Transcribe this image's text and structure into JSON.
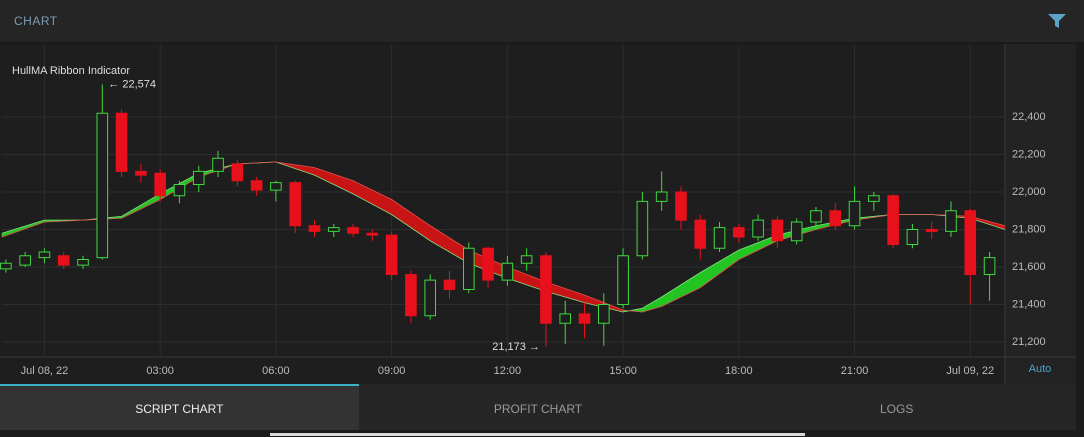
{
  "header": {
    "title": "CHART"
  },
  "chart_data": {
    "type": "candlestick",
    "title": "HullMA Ribbon Indicator",
    "x": [
      -1,
      -0.5,
      0,
      0.5,
      1,
      1.5,
      2,
      2.5,
      3,
      3.5,
      4,
      4.5,
      5,
      5.5,
      6,
      6.5,
      7,
      7.5,
      8,
      8.5,
      9,
      9.5,
      10,
      10.5,
      11,
      11.5,
      12,
      12.5,
      13,
      13.5,
      14,
      14.5,
      15,
      15.5,
      16,
      16.5,
      17,
      17.5,
      18,
      18.5,
      19,
      19.5,
      20,
      20.5,
      21,
      21.5,
      22,
      22.5,
      23,
      23.5,
      24,
      24.5
    ],
    "open": [
      21590,
      21610,
      21650,
      21660,
      21610,
      21650,
      22420,
      22110,
      22100,
      21980,
      22040,
      22110,
      22150,
      22060,
      22010,
      22050,
      21820,
      21790,
      21810,
      21780,
      21770,
      21560,
      21340,
      21530,
      21480,
      21700,
      21530,
      21620,
      21660,
      21300,
      21350,
      21300,
      21400,
      21660,
      21950,
      22000,
      21850,
      21700,
      21810,
      21760,
      21850,
      21740,
      21840,
      21900,
      21820,
      21950,
      21980,
      21720,
      21800,
      21790,
      21900,
      21560
    ],
    "high": [
      21640,
      21680,
      21700,
      21680,
      21660,
      22574,
      22440,
      22150,
      22120,
      22060,
      22140,
      22220,
      22170,
      22080,
      22060,
      22060,
      21850,
      21830,
      21830,
      21800,
      21790,
      21580,
      21560,
      21580,
      21730,
      21710,
      21660,
      21700,
      21680,
      21420,
      21410,
      21460,
      21700,
      22000,
      22110,
      22030,
      21880,
      21840,
      21830,
      21880,
      21870,
      21860,
      21920,
      21940,
      22030,
      22000,
      21990,
      21830,
      21840,
      21950,
      21910,
      21680
    ],
    "low": [
      21570,
      21600,
      21620,
      21590,
      21590,
      21640,
      22080,
      22050,
      21950,
      21940,
      22000,
      22080,
      22030,
      21980,
      21950,
      21780,
      21760,
      21760,
      21760,
      21740,
      21530,
      21300,
      21320,
      21430,
      21460,
      21490,
      21500,
      21580,
      21173,
      21190,
      21220,
      21180,
      21380,
      21640,
      21900,
      21800,
      21640,
      21680,
      21730,
      21740,
      21700,
      21720,
      21800,
      21800,
      21800,
      21900,
      21700,
      21700,
      21750,
      21760,
      21400,
      21420
    ],
    "close": [
      21620,
      21660,
      21680,
      21610,
      21640,
      22420,
      22110,
      22090,
      21980,
      22040,
      22110,
      22180,
      22060,
      22010,
      22050,
      21820,
      21790,
      21810,
      21780,
      21770,
      21560,
      21340,
      21530,
      21480,
      21700,
      21530,
      21620,
      21660,
      21300,
      21350,
      21300,
      21400,
      21660,
      21950,
      22000,
      21850,
      21700,
      21810,
      21760,
      21850,
      21740,
      21840,
      21900,
      21820,
      21950,
      21980,
      21720,
      21800,
      21790,
      21900,
      21560,
      21650
    ],
    "up_color": "#3fd93f",
    "down_color": "#e8101a",
    "xlim": [
      -1.1,
      24.9
    ],
    "xticks": [
      {
        "value": 0,
        "label": "Jul 08, 22"
      },
      {
        "value": 3,
        "label": "03:00"
      },
      {
        "value": 6,
        "label": "06:00"
      },
      {
        "value": 9,
        "label": "09:00"
      },
      {
        "value": 12,
        "label": "12:00"
      },
      {
        "value": 15,
        "label": "15:00"
      },
      {
        "value": 18,
        "label": "18:00"
      },
      {
        "value": 21,
        "label": "21:00"
      },
      {
        "value": 24,
        "label": "Jul 09, 22"
      }
    ],
    "ylim": [
      21120,
      22784
    ],
    "yticks": [
      {
        "value": 21200,
        "label": "21,200"
      },
      {
        "value": 21400,
        "label": "21,400"
      },
      {
        "value": 21600,
        "label": "21,600"
      },
      {
        "value": 21800,
        "label": "21,800"
      },
      {
        "value": 22000,
        "label": "22,000"
      },
      {
        "value": 22200,
        "label": "22,200"
      },
      {
        "value": 22400,
        "label": "22,400"
      }
    ],
    "grid": true,
    "ribbon": {
      "x": [
        -1.1,
        0,
        1,
        2,
        3,
        4,
        5,
        6,
        7,
        8,
        9,
        10,
        11,
        12,
        13,
        14,
        15,
        15.5,
        16,
        17,
        18,
        19,
        20,
        21,
        22,
        23,
        24,
        24.9
      ],
      "fast": [
        21780,
        21850,
        21850,
        21870,
        21990,
        22100,
        22150,
        22160,
        22090,
        21990,
        21880,
        21740,
        21620,
        21540,
        21470,
        21410,
        21360,
        21380,
        21440,
        21570,
        21690,
        21770,
        21820,
        21860,
        21880,
        21880,
        21860,
        21800
      ],
      "slow": [
        21760,
        21840,
        21850,
        21860,
        21960,
        22080,
        22150,
        22160,
        22130,
        22060,
        21960,
        21820,
        21690,
        21600,
        21520,
        21450,
        21370,
        21360,
        21390,
        21490,
        21640,
        21740,
        21800,
        21850,
        21880,
        21880,
        21870,
        21820
      ],
      "up_color": "#22c522",
      "down_color": "#c81414"
    },
    "annotations": [
      {
        "x": 1.5,
        "value": 22574,
        "label": "← 22,574"
      },
      {
        "x": 13,
        "value": 21173,
        "label": "21,173 →"
      }
    ],
    "axis_mode": "Auto"
  },
  "tabs": [
    "SCRIPT CHART",
    "PROFIT CHART",
    "LOGS"
  ]
}
